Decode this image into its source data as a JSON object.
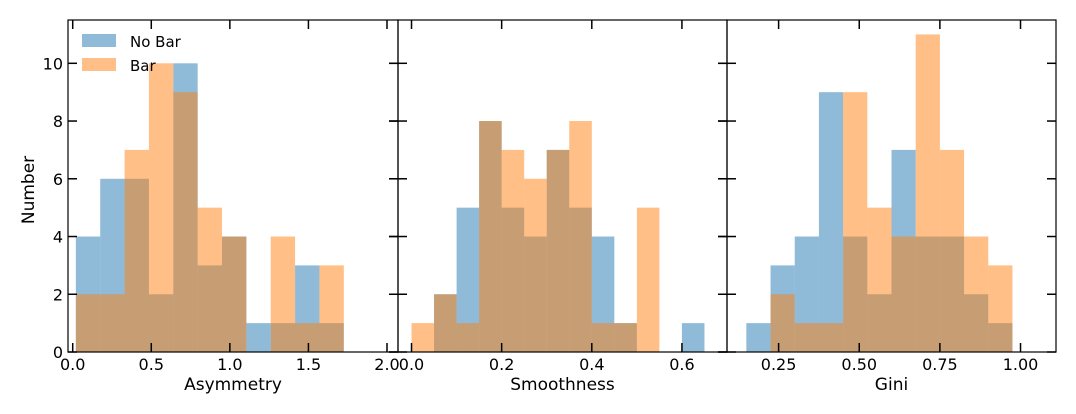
{
  "figure": {
    "ylabel": "Number"
  },
  "colors": {
    "no_bar": "#1f77b4",
    "bar": "#ff7f0e",
    "bar_alpha": 0.5
  },
  "legend": {
    "placement": "top-left",
    "entries": [
      "No Bar",
      "Bar"
    ]
  },
  "chart_data": [
    {
      "type": "bar",
      "histogram": true,
      "xlabel": "Asymmetry",
      "ylabel": "Number",
      "xlim": [
        -0.03,
        2.07
      ],
      "ylim": [
        0,
        11.5
      ],
      "xticks": [
        "0.0",
        "0.5",
        "1.0",
        "1.5",
        "2.0"
      ],
      "xtick_values": [
        0.0,
        0.5,
        1.0,
        1.5,
        2.0
      ],
      "yticks": [
        "0",
        "2",
        "4",
        "6",
        "8",
        "10"
      ],
      "ytick_values": [
        0,
        2,
        4,
        6,
        8,
        10
      ],
      "bin_edges": [
        0.02,
        0.175,
        0.33,
        0.485,
        0.64,
        0.795,
        0.95,
        1.105,
        1.26,
        1.415,
        1.57,
        1.725,
        1.88,
        2.035
      ],
      "series": [
        {
          "name": "No Bar",
          "values": [
            4,
            6,
            6,
            2,
            10,
            3,
            4,
            1,
            1,
            3,
            1,
            0,
            0
          ]
        },
        {
          "name": "Bar",
          "values": [
            2,
            2,
            7,
            10,
            9,
            5,
            4,
            0,
            4,
            1,
            3,
            0,
            0
          ]
        }
      ]
    },
    {
      "type": "bar",
      "histogram": true,
      "xlabel": "Smoothness",
      "xlim": [
        -0.03,
        0.7
      ],
      "ylim": [
        0,
        11.5
      ],
      "xticks": [
        "0.0",
        "0.2",
        "0.4",
        "0.6"
      ],
      "xtick_values": [
        0.0,
        0.2,
        0.4,
        0.6
      ],
      "yticks": [
        "0",
        "2",
        "4",
        "6",
        "8",
        "10"
      ],
      "ytick_values": [
        0,
        2,
        4,
        6,
        8,
        10
      ],
      "bin_edges": [
        0.0,
        0.05,
        0.1,
        0.15,
        0.2,
        0.25,
        0.3,
        0.35,
        0.4,
        0.45,
        0.5,
        0.55,
        0.6,
        0.65
      ],
      "series": [
        {
          "name": "No Bar",
          "values": [
            0,
            2,
            5,
            8,
            5,
            4,
            7,
            5,
            4,
            1,
            0,
            0,
            1
          ]
        },
        {
          "name": "Bar",
          "values": [
            1,
            2,
            1,
            8,
            7,
            6,
            7,
            8,
            1,
            1,
            5,
            0,
            0
          ]
        }
      ]
    },
    {
      "type": "bar",
      "histogram": true,
      "xlabel": "Gini",
      "xlim": [
        0.09,
        1.11
      ],
      "ylim": [
        0,
        11.5
      ],
      "xticks": [
        "0.25",
        "0.50",
        "0.75",
        "1.00"
      ],
      "xtick_values": [
        0.25,
        0.5,
        0.75,
        1.0
      ],
      "yticks": [
        "0",
        "2",
        "4",
        "6",
        "8",
        "10"
      ],
      "ytick_values": [
        0,
        2,
        4,
        6,
        8,
        10
      ],
      "bin_edges": [
        0.15,
        0.225,
        0.3,
        0.375,
        0.45,
        0.525,
        0.6,
        0.675,
        0.75,
        0.825,
        0.9,
        0.975
      ],
      "series": [
        {
          "name": "No Bar",
          "values": [
            1,
            3,
            4,
            9,
            4,
            2,
            7,
            4,
            4,
            2,
            1
          ]
        },
        {
          "name": "Bar",
          "values": [
            0,
            2,
            1,
            1,
            9,
            5,
            4,
            11,
            7,
            4,
            3
          ]
        }
      ]
    }
  ]
}
